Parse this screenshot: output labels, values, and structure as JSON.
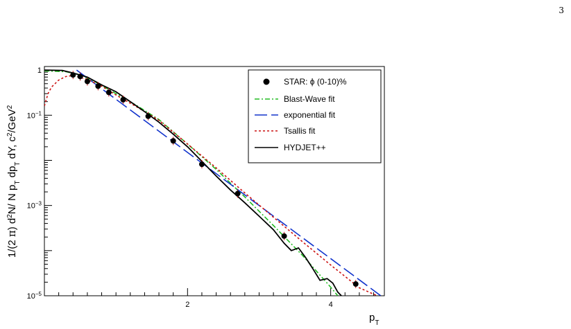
{
  "page": {
    "number": "3"
  },
  "chart_data": {
    "type": "scatter",
    "title": "",
    "xlabel": "p_T",
    "ylabel": "1/(2 π) d²N/ N p_T dp_T dY, c²/GeV²",
    "xlim": [
      0,
      4.75
    ],
    "ylim": [
      1e-05,
      1.2
    ],
    "yscale": "log",
    "x_tick_labels": [
      "2",
      "4"
    ],
    "y_tick_labels": [
      {
        "value": 1,
        "base": "1",
        "exp": ""
      },
      {
        "value": 0.1,
        "base": "10",
        "exp": "−1"
      },
      {
        "value": 0.001,
        "base": "10",
        "exp": "−3"
      },
      {
        "value": 1e-05,
        "base": "10",
        "exp": "−5"
      }
    ],
    "grid": false,
    "legend_position": "top-right",
    "series": [
      {
        "name": "STAR: ϕ (0-10)%",
        "kind": "points",
        "color": "#000000",
        "x": [
          0.4,
          0.5,
          0.6,
          0.75,
          0.9,
          1.1,
          1.45,
          1.8,
          2.2,
          2.7,
          3.35,
          4.35
        ],
        "y": [
          0.78,
          0.72,
          0.56,
          0.44,
          0.32,
          0.22,
          0.095,
          0.027,
          0.0082,
          0.00183,
          0.00021,
          1.82e-05
        ]
      },
      {
        "name": "Blast-Wave fit",
        "kind": "line",
        "color": "#22bb22",
        "dash": "7,3,2,3",
        "x": [
          0.0,
          0.3,
          0.5,
          0.7,
          1.0,
          1.3,
          1.6,
          2.0,
          2.4,
          2.8,
          3.2,
          3.6,
          4.0,
          4.1
        ],
        "y": [
          0.96,
          0.92,
          0.78,
          0.56,
          0.3,
          0.16,
          0.08,
          0.023,
          0.0063,
          0.00155,
          0.00036,
          8e-05,
          1.55e-05,
          1e-05
        ]
      },
      {
        "name": "exponential fit",
        "kind": "line",
        "color": "#1133cc",
        "dash": "18,6",
        "x": [
          0.45,
          4.7
        ],
        "y": [
          1.0,
          1e-05
        ]
      },
      {
        "name": "Tsallis fit",
        "kind": "line",
        "color": "#cc1111",
        "dash": "3,3",
        "x": [
          0.0,
          0.05,
          0.1,
          0.2,
          0.3,
          0.4,
          0.6,
          0.8,
          1.0,
          1.3,
          1.6,
          2.0,
          2.4,
          2.8,
          3.2,
          3.6,
          4.0,
          4.4,
          4.65
        ],
        "y": [
          0.16,
          0.3,
          0.42,
          0.6,
          0.72,
          0.76,
          0.62,
          0.44,
          0.28,
          0.15,
          0.077,
          0.023,
          0.0068,
          0.0019,
          0.00055,
          0.00016,
          4.8e-05,
          1.5e-05,
          1e-05
        ]
      },
      {
        "name": "HYDJET++",
        "kind": "line",
        "color": "#000000",
        "dash": "",
        "x": [
          0.0,
          0.25,
          0.4,
          0.6,
          0.8,
          1.0,
          1.2,
          1.4,
          1.6,
          1.8,
          2.0,
          2.2,
          2.4,
          2.6,
          2.8,
          3.0,
          3.2,
          3.35,
          3.45,
          3.55,
          3.65,
          3.75,
          3.85,
          3.95,
          4.03,
          4.1,
          4.15
        ],
        "y": [
          1.0,
          0.98,
          0.86,
          0.7,
          0.47,
          0.33,
          0.2,
          0.12,
          0.07,
          0.038,
          0.02,
          0.0095,
          0.0045,
          0.0022,
          0.00115,
          0.00058,
          0.00029,
          0.000145,
          0.0001,
          0.000115,
          7e-05,
          4e-05,
          2.2e-05,
          2.4e-05,
          1.9e-05,
          1.2e-05,
          1e-05
        ]
      }
    ]
  }
}
